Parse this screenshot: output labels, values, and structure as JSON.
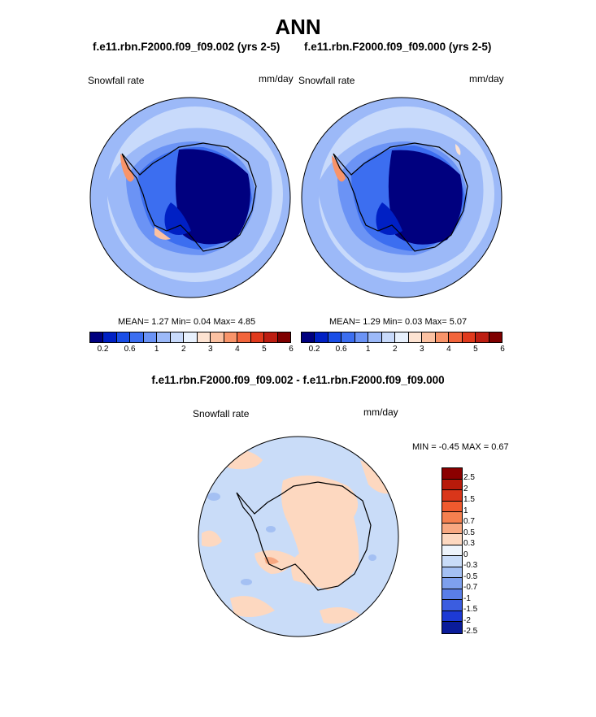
{
  "title": "ANN",
  "panels": [
    {
      "case_title": "f.e11.rbn.F2000.f09_f09.002 (yrs 2-5)",
      "variable_label": "Snowfall rate",
      "units_label": "mm/day",
      "stats": {
        "mean_label": "MEAN=",
        "mean": "1.27",
        "min_label": "Min=",
        "min": "0.04",
        "max_label": "Max=",
        "max": "4.85"
      }
    },
    {
      "case_title": "f.e11.rbn.F2000.f09_f09.000 (yrs 2-5)",
      "variable_label": "Snowfall rate",
      "units_label": "mm/day",
      "stats": {
        "mean_label": "MEAN=",
        "mean": "1.29",
        "min_label": "Min=",
        "min": "0.03",
        "max_label": "Max=",
        "max": "5.07"
      }
    }
  ],
  "colorbar": {
    "colors": [
      "#00007f",
      "#0020c4",
      "#1a4ee6",
      "#3c6ef0",
      "#6b93f5",
      "#9cb9f8",
      "#c8dafb",
      "#e8f1fd",
      "#fde3d2",
      "#fbc1a2",
      "#f8946a",
      "#f2653c",
      "#e03a1d",
      "#bd1e12",
      "#7f0000"
    ],
    "tick_labels": [
      "0.2",
      "0.6",
      "1",
      "2",
      "3",
      "4",
      "5",
      "6"
    ]
  },
  "diff": {
    "title": "f.e11.rbn.F2000.f09_f09.002 - f.e11.rbn.F2000.f09_f09.000",
    "variable_label": "Snowfall rate",
    "units_label": "mm/day",
    "minmax": {
      "min_label": "MIN =",
      "min": "-0.45",
      "max_label": "MAX =",
      "max": "0.67"
    },
    "colorbar_colors": [
      "#8b0000",
      "#b81a0a",
      "#d9361a",
      "#ef5a2e",
      "#f5804f",
      "#f8a881",
      "#fdd8c0",
      "#eef4fb",
      "#c9dcf8",
      "#a4c0f3",
      "#7ea0ee",
      "#5a7ee8",
      "#3b5de0",
      "#1d3ad4",
      "#0a1c9a"
    ],
    "colorbar_labels": [
      "2.5",
      "2",
      "1.5",
      "1",
      "0.7",
      "0.5",
      "0.3",
      "0",
      "-0.3",
      "-0.5",
      "-0.7",
      "-1",
      "-1.5",
      "-2",
      "-2.5"
    ]
  }
}
